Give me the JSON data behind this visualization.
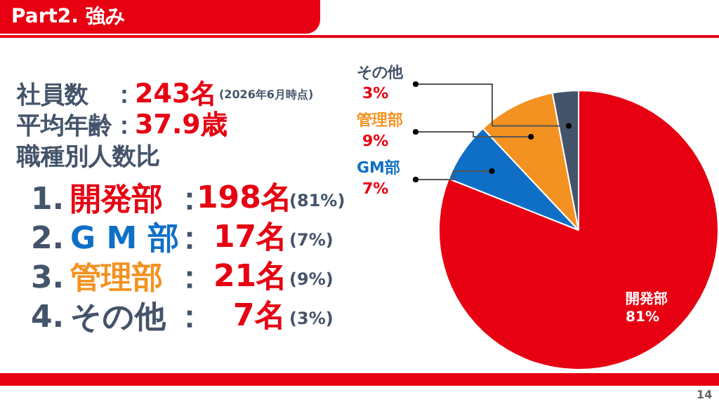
{
  "chart_data": {
    "type": "pie",
    "title": "Part2. 強み",
    "categories": [
      "開発部",
      "GM部",
      "管理部",
      "その他"
    ],
    "values": [
      81,
      7,
      9,
      3
    ],
    "colors": [
      "#e60012",
      "#0f6fc6",
      "#f39220",
      "#44546a"
    ],
    "value_labels": [
      "81%",
      "7%",
      "9%",
      "3%"
    ],
    "legend": false,
    "annotations": [
      "社員数",
      "：",
      "243名",
      "(2026年6月時点)",
      "平均年齢",
      "：",
      "37.9歳",
      "職種別人数比",
      "1.",
      "開発部",
      "：",
      "198名",
      "(81%)",
      "2.",
      "G M 部",
      "：",
      "17名",
      "(7%)",
      "3.",
      "管理部",
      "：",
      "21名",
      "(9%)",
      "4.",
      "その他",
      "：",
      "7名",
      "(3%)",
      "14"
    ]
  }
}
